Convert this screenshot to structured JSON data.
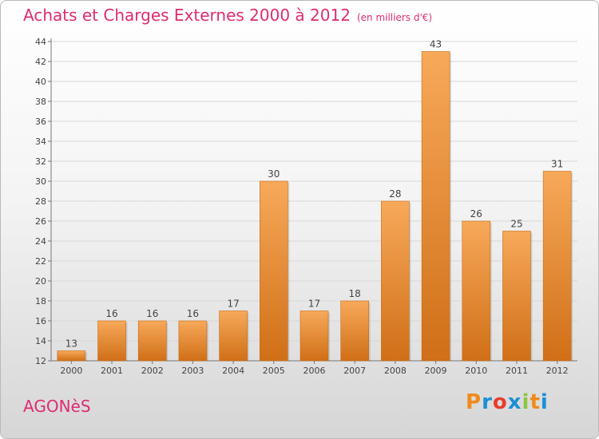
{
  "title": "Achats et Charges Externes 2000 à 2012",
  "subtitle": "(en milliers d'€)",
  "commune": "AGONèS",
  "logo": {
    "letters": [
      "P",
      "r",
      "o",
      "x",
      "i",
      "t",
      "i"
    ],
    "colors": [
      "#f08a1c",
      "#1b8fd6",
      "#e63c2c",
      "#1b8fd6",
      "#8cc63f",
      "#f08a1c",
      "#1b8fd6"
    ]
  },
  "colors": {
    "accent": "#dd2c71",
    "bar_light": "#f7a95a",
    "bar_dark": "#d06f17"
  },
  "chart_data": {
    "type": "bar",
    "categories": [
      "2000",
      "2001",
      "2002",
      "2003",
      "2004",
      "2005",
      "2006",
      "2007",
      "2008",
      "2009",
      "2010",
      "2011",
      "2012"
    ],
    "values": [
      13,
      16,
      16,
      16,
      17,
      30,
      17,
      18,
      28,
      43,
      26,
      25,
      31
    ],
    "title": "Achats et Charges Externes 2000 à 2012",
    "ylim": [
      12,
      44
    ],
    "yticks": [
      12,
      14,
      16,
      18,
      20,
      22,
      24,
      26,
      28,
      30,
      32,
      34,
      36,
      38,
      40,
      42,
      44
    ],
    "grid": true
  }
}
